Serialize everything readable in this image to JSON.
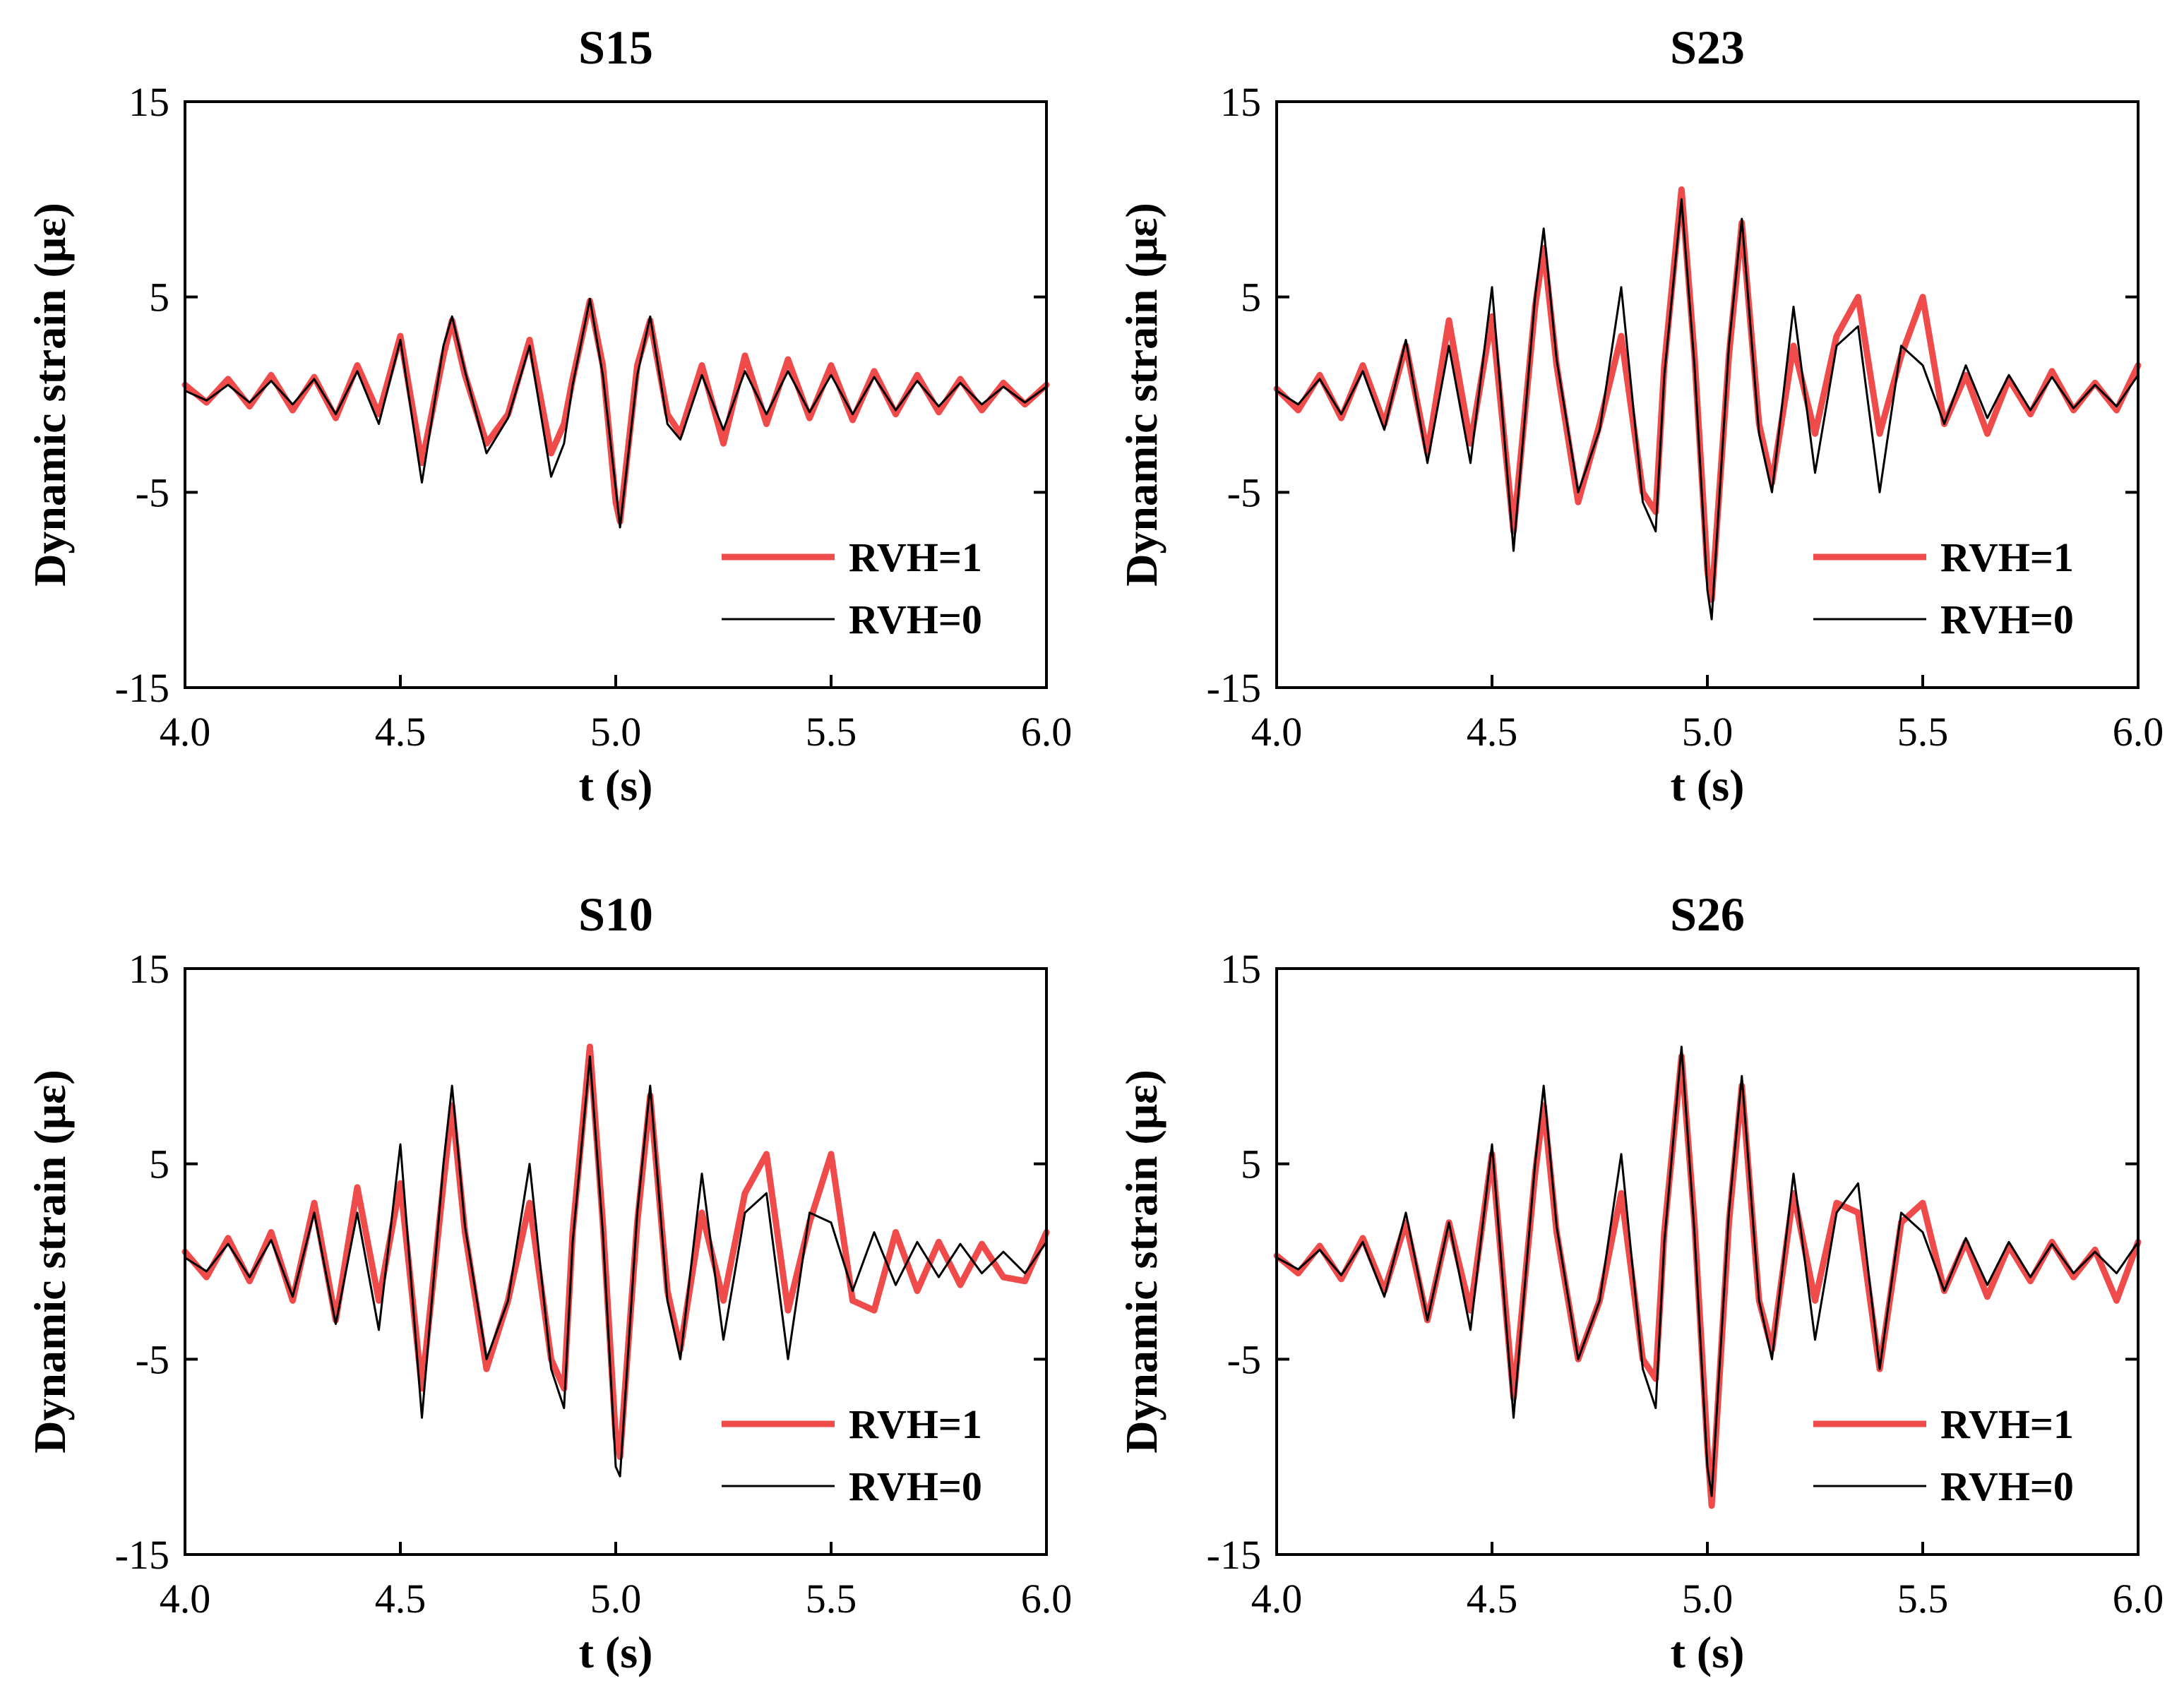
{
  "figure": {
    "series_styles": [
      {
        "name": "RVH=1",
        "color": "#f04b4b"
      },
      {
        "name": "RVH=0",
        "color": "#000000"
      }
    ]
  },
  "chart_data": [
    {
      "type": "line",
      "title": "S15",
      "xlabel": "t (s)",
      "ylabel": "Dynamic strain (με)",
      "xlim": [
        4.0,
        6.0
      ],
      "ylim": [
        -15,
        15
      ],
      "xticks": [
        "4.0",
        "4.5",
        "5.0",
        "5.5",
        "6.0"
      ],
      "yticks": [
        "15",
        "5",
        "-5",
        "-15"
      ],
      "legend_position": "bottom-right",
      "series": [
        {
          "name": "RVH=1",
          "color": "#f04b4b",
          "x": [
            4.0,
            4.05,
            4.1,
            4.15,
            4.2,
            4.25,
            4.3,
            4.35,
            4.4,
            4.45,
            4.5,
            4.55,
            4.6,
            4.62,
            4.65,
            4.7,
            4.75,
            4.8,
            4.85,
            4.88,
            4.9,
            4.94,
            4.97,
            5.0,
            5.01,
            5.05,
            5.08,
            5.12,
            5.15,
            5.2,
            5.25,
            5.3,
            5.35,
            5.4,
            5.45,
            5.5,
            5.55,
            5.6,
            5.65,
            5.7,
            5.75,
            5.8,
            5.85,
            5.9,
            5.95,
            6.0
          ],
          "y": [
            0.5,
            -0.4,
            0.8,
            -0.6,
            1.0,
            -0.8,
            0.9,
            -1.2,
            1.5,
            -1.0,
            3.0,
            -3.5,
            2.0,
            3.8,
            1.0,
            -2.5,
            -1.0,
            2.8,
            -3.0,
            -1.5,
            0.8,
            4.8,
            1.5,
            -5.5,
            -6.5,
            1.5,
            3.8,
            -1.0,
            -2.0,
            1.5,
            -2.5,
            2.0,
            -1.5,
            1.8,
            -1.2,
            1.5,
            -1.3,
            1.2,
            -1.0,
            1.0,
            -0.9,
            0.8,
            -0.8,
            0.6,
            -0.5,
            0.5
          ]
        },
        {
          "name": "RVH=0",
          "color": "#000000",
          "x": [
            4.0,
            4.05,
            4.1,
            4.15,
            4.2,
            4.25,
            4.3,
            4.35,
            4.4,
            4.45,
            4.5,
            4.55,
            4.6,
            4.62,
            4.65,
            4.7,
            4.75,
            4.8,
            4.85,
            4.88,
            4.9,
            4.94,
            4.97,
            5.0,
            5.01,
            5.05,
            5.08,
            5.12,
            5.15,
            5.2,
            5.25,
            5.3,
            5.35,
            5.4,
            5.45,
            5.5,
            5.55,
            5.6,
            5.65,
            5.7,
            5.75,
            5.8,
            5.85,
            5.9,
            5.95,
            6.0
          ],
          "y": [
            0.2,
            -0.3,
            0.5,
            -0.4,
            0.7,
            -0.5,
            0.8,
            -1.0,
            1.2,
            -1.5,
            2.8,
            -4.5,
            2.5,
            4.0,
            1.2,
            -3.0,
            -1.2,
            2.5,
            -4.2,
            -2.5,
            0.5,
            4.9,
            1.0,
            -4.8,
            -6.8,
            1.0,
            4.0,
            -1.5,
            -2.3,
            1.0,
            -1.8,
            1.2,
            -1.0,
            1.2,
            -0.9,
            1.0,
            -1.0,
            0.9,
            -0.8,
            0.7,
            -0.6,
            0.6,
            -0.5,
            0.4,
            -0.4,
            0.4
          ]
        }
      ]
    },
    {
      "type": "line",
      "title": "S23",
      "xlabel": "t (s)",
      "ylabel": "Dynamic strain (με)",
      "xlim": [
        4.0,
        6.0
      ],
      "ylim": [
        -15,
        15
      ],
      "xticks": [
        "4.0",
        "4.5",
        "5.0",
        "5.5",
        "6.0"
      ],
      "yticks": [
        "15",
        "5",
        "-5",
        "-15"
      ],
      "legend_position": "bottom-right",
      "series": [
        {
          "name": "RVH=1",
          "color": "#f04b4b",
          "x": [
            4.0,
            4.05,
            4.1,
            4.15,
            4.2,
            4.25,
            4.3,
            4.35,
            4.4,
            4.45,
            4.5,
            4.55,
            4.6,
            4.62,
            4.65,
            4.7,
            4.75,
            4.8,
            4.85,
            4.88,
            4.9,
            4.94,
            4.97,
            5.0,
            5.01,
            5.05,
            5.08,
            5.12,
            5.15,
            5.2,
            5.25,
            5.3,
            5.35,
            5.4,
            5.45,
            5.5,
            5.55,
            5.6,
            5.65,
            5.7,
            5.75,
            5.8,
            5.85,
            5.9,
            5.95,
            6.0
          ],
          "y": [
            0.3,
            -0.8,
            1.0,
            -1.2,
            1.5,
            -1.5,
            2.5,
            -3.0,
            3.8,
            -2.5,
            4.0,
            -7.0,
            4.5,
            7.5,
            1.5,
            -5.5,
            -1.5,
            3.0,
            -5.0,
            -6.0,
            1.5,
            10.5,
            2.0,
            -9.0,
            -10.5,
            2.0,
            8.8,
            -1.5,
            -4.5,
            2.5,
            -2.0,
            3.0,
            5.0,
            -2.0,
            2.0,
            5.0,
            -1.5,
            1.0,
            -2.0,
            0.8,
            -1.0,
            1.2,
            -0.8,
            0.6,
            -0.8,
            1.5
          ]
        },
        {
          "name": "RVH=0",
          "color": "#000000",
          "x": [
            4.0,
            4.05,
            4.1,
            4.15,
            4.2,
            4.25,
            4.3,
            4.35,
            4.4,
            4.45,
            4.5,
            4.55,
            4.6,
            4.62,
            4.65,
            4.7,
            4.75,
            4.8,
            4.85,
            4.88,
            4.9,
            4.94,
            4.97,
            5.0,
            5.01,
            5.05,
            5.08,
            5.12,
            5.15,
            5.2,
            5.25,
            5.3,
            5.35,
            5.4,
            5.45,
            5.5,
            5.55,
            5.6,
            5.65,
            5.7,
            5.75,
            5.8,
            5.85,
            5.9,
            5.95,
            6.0
          ],
          "y": [
            0.2,
            -0.5,
            0.8,
            -1.0,
            1.2,
            -1.8,
            2.8,
            -3.5,
            2.5,
            -3.5,
            5.5,
            -8.0,
            5.0,
            8.5,
            1.8,
            -5.0,
            -1.8,
            5.5,
            -5.5,
            -7.0,
            1.0,
            10.0,
            1.5,
            -10.0,
            -11.5,
            2.5,
            9.0,
            -2.0,
            -5.0,
            4.5,
            -4.0,
            2.5,
            3.5,
            -5.0,
            2.5,
            1.5,
            -1.5,
            1.5,
            -1.2,
            1.0,
            -0.8,
            0.9,
            -0.7,
            0.5,
            -0.6,
            1.0
          ]
        }
      ]
    },
    {
      "type": "line",
      "title": "S10",
      "xlabel": "t (s)",
      "ylabel": "Dynamic strain (με)",
      "xlim": [
        4.0,
        6.0
      ],
      "ylim": [
        -15,
        15
      ],
      "xticks": [
        "4.0",
        "4.5",
        "5.0",
        "5.5",
        "6.0"
      ],
      "yticks": [
        "15",
        "5",
        "-5",
        "-15"
      ],
      "legend_position": "bottom-right",
      "series": [
        {
          "name": "RVH=1",
          "color": "#f04b4b",
          "x": [
            4.0,
            4.05,
            4.1,
            4.15,
            4.2,
            4.25,
            4.3,
            4.35,
            4.4,
            4.45,
            4.5,
            4.55,
            4.6,
            4.62,
            4.65,
            4.7,
            4.75,
            4.8,
            4.85,
            4.88,
            4.9,
            4.94,
            4.97,
            5.0,
            5.01,
            5.05,
            5.08,
            5.12,
            5.15,
            5.2,
            5.25,
            5.3,
            5.35,
            5.4,
            5.45,
            5.5,
            5.55,
            5.6,
            5.65,
            5.7,
            5.75,
            5.8,
            5.85,
            5.9,
            5.95,
            6.0
          ],
          "y": [
            0.5,
            -0.8,
            1.2,
            -1.0,
            1.5,
            -2.0,
            3.0,
            -3.0,
            3.8,
            -2.0,
            4.0,
            -6.5,
            4.0,
            8.0,
            1.5,
            -5.5,
            -2.0,
            3.0,
            -5.0,
            -6.5,
            1.5,
            11.0,
            2.0,
            -9.0,
            -10.0,
            2.0,
            8.5,
            -1.5,
            -4.5,
            2.5,
            -2.0,
            3.5,
            5.5,
            -2.5,
            2.0,
            5.5,
            -2.0,
            -2.5,
            1.5,
            -1.5,
            1.0,
            -1.2,
            0.9,
            -0.8,
            -1.0,
            1.5
          ]
        },
        {
          "name": "RVH=0",
          "color": "#000000",
          "x": [
            4.0,
            4.05,
            4.1,
            4.15,
            4.2,
            4.25,
            4.3,
            4.35,
            4.4,
            4.45,
            4.5,
            4.55,
            4.6,
            4.62,
            4.65,
            4.7,
            4.75,
            4.8,
            4.85,
            4.88,
            4.9,
            4.94,
            4.97,
            5.0,
            5.01,
            5.05,
            5.08,
            5.12,
            5.15,
            5.2,
            5.25,
            5.3,
            5.35,
            5.4,
            5.45,
            5.5,
            5.55,
            5.6,
            5.65,
            5.7,
            5.75,
            5.8,
            5.85,
            5.9,
            5.95,
            6.0
          ],
          "y": [
            0.2,
            -0.5,
            0.9,
            -0.8,
            1.1,
            -1.8,
            2.5,
            -3.2,
            2.5,
            -3.5,
            6.0,
            -8.0,
            5.0,
            9.0,
            1.8,
            -5.0,
            -2.0,
            5.0,
            -5.5,
            -7.5,
            1.0,
            10.5,
            1.5,
            -10.5,
            -11.0,
            2.5,
            9.0,
            -2.0,
            -5.0,
            4.5,
            -4.0,
            2.5,
            3.5,
            -5.0,
            2.5,
            2.0,
            -1.5,
            1.5,
            -1.2,
            1.0,
            -0.8,
            0.9,
            -0.6,
            0.5,
            -0.6,
            1.0
          ]
        }
      ]
    },
    {
      "type": "line",
      "title": "S26",
      "xlabel": "t (s)",
      "ylabel": "Dynamic strain (με)",
      "xlim": [
        4.0,
        6.0
      ],
      "ylim": [
        -15,
        15
      ],
      "xticks": [
        "4.0",
        "4.5",
        "5.0",
        "5.5",
        "6.0"
      ],
      "yticks": [
        "15",
        "5",
        "-5",
        "-15"
      ],
      "legend_position": "bottom-right",
      "series": [
        {
          "name": "RVH=1",
          "color": "#f04b4b",
          "x": [
            4.0,
            4.05,
            4.1,
            4.15,
            4.2,
            4.25,
            4.3,
            4.35,
            4.4,
            4.45,
            4.5,
            4.55,
            4.6,
            4.62,
            4.65,
            4.7,
            4.75,
            4.8,
            4.85,
            4.88,
            4.9,
            4.94,
            4.97,
            5.0,
            5.01,
            5.05,
            5.08,
            5.12,
            5.15,
            5.2,
            5.25,
            5.3,
            5.35,
            5.4,
            5.45,
            5.5,
            5.55,
            5.6,
            5.65,
            5.7,
            5.75,
            5.8,
            5.85,
            5.9,
            5.95,
            6.0
          ],
          "y": [
            0.3,
            -0.6,
            0.8,
            -0.9,
            1.2,
            -1.5,
            2.0,
            -3.0,
            2.0,
            -2.5,
            5.5,
            -7.0,
            4.5,
            8.0,
            1.5,
            -5.0,
            -2.0,
            3.5,
            -5.0,
            -6.0,
            1.5,
            10.5,
            2.0,
            -9.5,
            -12.5,
            2.0,
            9.0,
            -2.0,
            -4.5,
            3.5,
            -2.0,
            3.0,
            2.5,
            -5.5,
            2.0,
            3.0,
            -1.5,
            1.0,
            -1.8,
            0.8,
            -1.0,
            1.0,
            -0.8,
            0.6,
            -2.0,
            1.0
          ]
        },
        {
          "name": "RVH=0",
          "color": "#000000",
          "x": [
            4.0,
            4.05,
            4.1,
            4.15,
            4.2,
            4.25,
            4.3,
            4.35,
            4.4,
            4.45,
            4.5,
            4.55,
            4.6,
            4.62,
            4.65,
            4.7,
            4.75,
            4.8,
            4.85,
            4.88,
            4.9,
            4.94,
            4.97,
            5.0,
            5.01,
            5.05,
            5.08,
            5.12,
            5.15,
            5.2,
            5.25,
            5.3,
            5.35,
            5.4,
            5.45,
            5.5,
            5.55,
            5.6,
            5.65,
            5.7,
            5.75,
            5.8,
            5.85,
            5.9,
            5.95,
            6.0
          ],
          "y": [
            0.2,
            -0.4,
            0.6,
            -0.7,
            1.0,
            -1.8,
            2.5,
            -3.0,
            2.0,
            -3.5,
            6.0,
            -8.0,
            5.0,
            9.0,
            1.8,
            -5.0,
            -2.0,
            5.5,
            -5.5,
            -7.5,
            1.0,
            11.0,
            1.5,
            -10.5,
            -12.0,
            2.5,
            9.5,
            -2.0,
            -5.0,
            4.5,
            -4.0,
            2.5,
            4.0,
            -5.5,
            2.5,
            1.5,
            -1.5,
            1.2,
            -1.2,
            1.0,
            -0.8,
            0.9,
            -0.6,
            0.5,
            -0.6,
            1.0
          ]
        }
      ]
    }
  ]
}
